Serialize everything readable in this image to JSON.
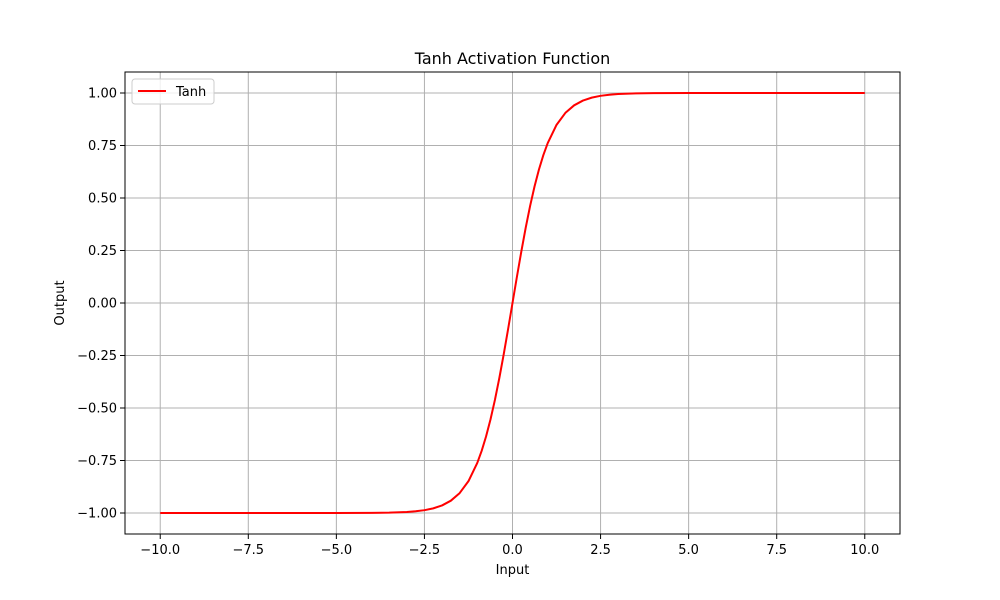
{
  "chart_data": {
    "type": "line",
    "title": "Tanh Activation Function",
    "xlabel": "Input",
    "ylabel": "Output",
    "xlim": [
      -11.0,
      11.0
    ],
    "ylim": [
      -1.1,
      1.1
    ],
    "xticks": [
      -10.0,
      -7.5,
      -5.0,
      -2.5,
      0.0,
      2.5,
      5.0,
      7.5,
      10.0
    ],
    "xtick_labels": [
      "−10.0",
      "−7.5",
      "−5.0",
      "−2.5",
      "0.0",
      "2.5",
      "5.0",
      "7.5",
      "10.0"
    ],
    "yticks": [
      -1.0,
      -0.75,
      -0.5,
      -0.25,
      0.0,
      0.25,
      0.5,
      0.75,
      1.0
    ],
    "ytick_labels": [
      "−1.00",
      "−0.75",
      "−0.50",
      "−0.25",
      "0.00",
      "0.25",
      "0.50",
      "0.75",
      "1.00"
    ],
    "grid": true,
    "legend_position": "top-left",
    "series": [
      {
        "name": "Tanh",
        "color": "#ff0000",
        "x": [
          -10.0,
          -9.0,
          -8.0,
          -7.0,
          -6.0,
          -5.0,
          -4.0,
          -3.5,
          -3.0,
          -2.75,
          -2.5,
          -2.25,
          -2.0,
          -1.75,
          -1.5,
          -1.25,
          -1.0,
          -0.875,
          -0.75,
          -0.625,
          -0.5,
          -0.375,
          -0.25,
          -0.125,
          0.0,
          0.125,
          0.25,
          0.375,
          0.5,
          0.625,
          0.75,
          0.875,
          1.0,
          1.25,
          1.5,
          1.75,
          2.0,
          2.25,
          2.5,
          2.75,
          3.0,
          3.5,
          4.0,
          5.0,
          6.0,
          7.0,
          8.0,
          9.0,
          10.0
        ],
        "y": [
          -1.0,
          -1.0,
          -1.0,
          -1.0,
          -1.0,
          -0.9999,
          -0.9993,
          -0.9982,
          -0.9951,
          -0.9919,
          -0.9866,
          -0.978,
          -0.964,
          -0.9414,
          -0.9051,
          -0.8483,
          -0.7616,
          -0.7039,
          -0.6351,
          -0.5546,
          -0.4621,
          -0.3584,
          -0.2449,
          -0.1244,
          0.0,
          0.1244,
          0.2449,
          0.3584,
          0.4621,
          0.5546,
          0.6351,
          0.7039,
          0.7616,
          0.8483,
          0.9051,
          0.9414,
          0.964,
          0.978,
          0.9866,
          0.9919,
          0.9951,
          0.9982,
          0.9993,
          0.9999,
          1.0,
          1.0,
          1.0,
          1.0,
          1.0
        ]
      }
    ]
  }
}
